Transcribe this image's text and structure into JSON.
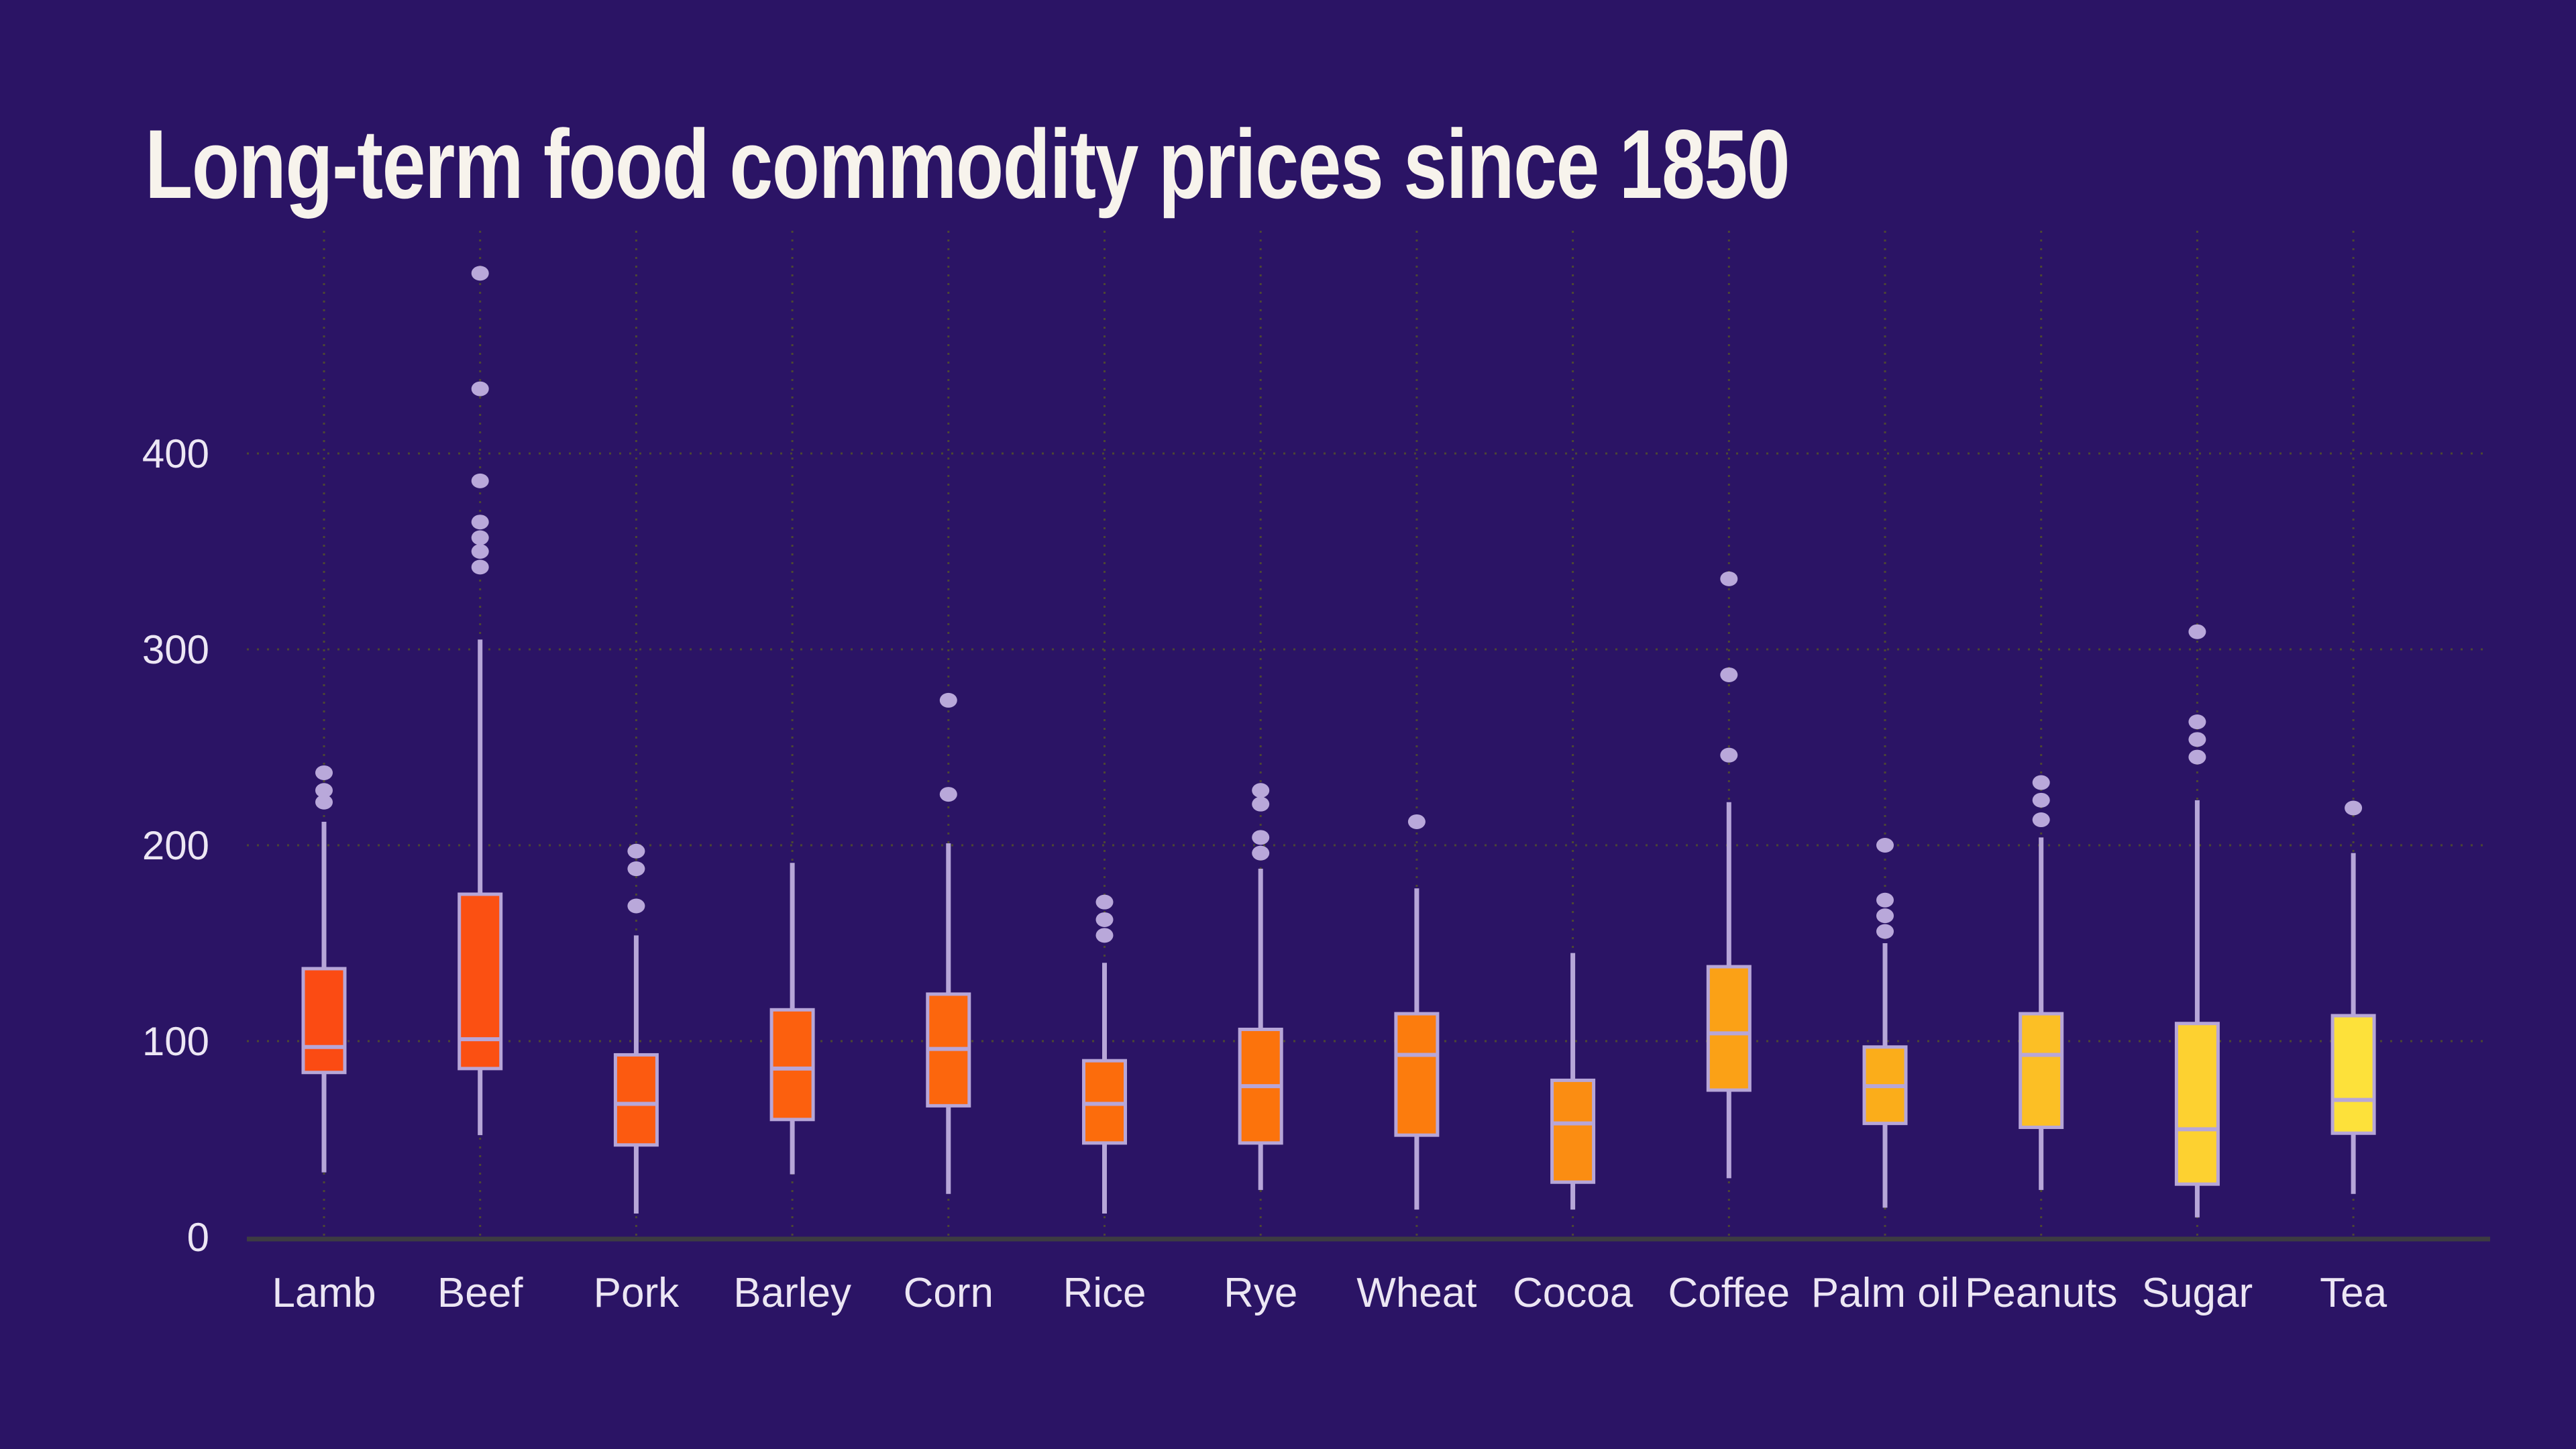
{
  "title": "Long-term food commodity prices since 1850",
  "colors": {
    "background": "#2b1465",
    "title_text": "#f7f3ec",
    "axis_label_text": "#ece6f4",
    "box_outline": "#b7a6d8",
    "outlier_dot": "#b9a8da",
    "gridline_dotted": "#4c4733",
    "axis_baseline": "#3d3c42"
  },
  "y_axis": {
    "tick_labels": [
      "0",
      "100",
      "200",
      "300",
      "400"
    ]
  },
  "x_axis": {
    "labels": [
      "Lamb",
      "Beef",
      "Pork",
      "Barley",
      "Corn",
      "Rice",
      "Rye",
      "Wheat",
      "Cocoa",
      "Coffee",
      "Palm oil",
      "Peanuts",
      "Sugar",
      "Tea"
    ]
  },
  "chart_data": {
    "type": "boxplot",
    "title": "Long-term food commodity prices since 1850",
    "xlabel": "",
    "ylabel": "",
    "y_ticks": [
      0,
      100,
      200,
      300,
      400
    ],
    "ylim": [
      0,
      515
    ],
    "grid": "dotted horizontal lines at y ticks and dotted vertical line at each category; solid baseline at 0",
    "legend": "none",
    "categories": [
      "Lamb",
      "Beef",
      "Pork",
      "Barley",
      "Corn",
      "Rice",
      "Rye",
      "Wheat",
      "Cocoa",
      "Coffee",
      "Palm oil",
      "Peanuts",
      "Sugar",
      "Tea"
    ],
    "series": [
      {
        "name": "Lamb",
        "color": "#fb4b13",
        "low": 33,
        "q1": 84,
        "median": 97,
        "q3": 137,
        "high": 212,
        "outliers": [
          237,
          228,
          222
        ]
      },
      {
        "name": "Beef",
        "color": "#fb5012",
        "low": 52,
        "q1": 86,
        "median": 101,
        "q3": 175,
        "high": 305,
        "outliers": [
          492,
          433,
          386,
          365,
          357,
          350,
          342
        ]
      },
      {
        "name": "Pork",
        "color": "#fc5a10",
        "low": 12,
        "q1": 47,
        "median": 68,
        "q3": 93,
        "high": 154,
        "outliers": [
          197,
          188,
          169
        ]
      },
      {
        "name": "Barley",
        "color": "#fc600e",
        "low": 32,
        "q1": 60,
        "median": 86,
        "q3": 116,
        "high": 191,
        "outliers": []
      },
      {
        "name": "Corn",
        "color": "#fc660d",
        "low": 22,
        "q1": 67,
        "median": 96,
        "q3": 124,
        "high": 201,
        "outliers": [
          274,
          226
        ]
      },
      {
        "name": "Rice",
        "color": "#fc6c0c",
        "low": 12,
        "q1": 48,
        "median": 68,
        "q3": 90,
        "high": 140,
        "outliers": [
          171,
          162,
          154
        ]
      },
      {
        "name": "Rye",
        "color": "#fc730c",
        "low": 24,
        "q1": 48,
        "median": 77,
        "q3": 106,
        "high": 188,
        "outliers": [
          228,
          221,
          204,
          196
        ]
      },
      {
        "name": "Wheat",
        "color": "#fc7c0d",
        "low": 14,
        "q1": 52,
        "median": 93,
        "q3": 114,
        "high": 178,
        "outliers": [
          212
        ]
      },
      {
        "name": "Cocoa",
        "color": "#fb8d12",
        "low": 14,
        "q1": 28,
        "median": 58,
        "q3": 80,
        "high": 145,
        "outliers": []
      },
      {
        "name": "Coffee",
        "color": "#fba116",
        "low": 30,
        "q1": 75,
        "median": 104,
        "q3": 138,
        "high": 222,
        "outliers": [
          336,
          287,
          246
        ]
      },
      {
        "name": "Palm oil",
        "color": "#fbad1a",
        "low": 15,
        "q1": 58,
        "median": 77,
        "q3": 97,
        "high": 150,
        "outliers": [
          200,
          172,
          164,
          156
        ]
      },
      {
        "name": "Peanuts",
        "color": "#fcbf25",
        "low": 24,
        "q1": 56,
        "median": 93,
        "q3": 114,
        "high": 204,
        "outliers": [
          232,
          223,
          213
        ]
      },
      {
        "name": "Sugar",
        "color": "#fdd130",
        "low": 10,
        "q1": 27,
        "median": 55,
        "q3": 109,
        "high": 223,
        "outliers": [
          309,
          263,
          254,
          245
        ]
      },
      {
        "name": "Tea",
        "color": "#fde13a",
        "low": 22,
        "q1": 53,
        "median": 70,
        "q3": 113,
        "high": 196,
        "outliers": [
          219
        ]
      }
    ]
  }
}
